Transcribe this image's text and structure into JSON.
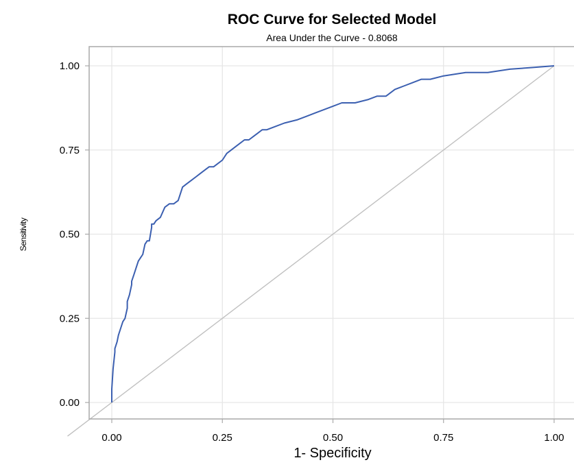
{
  "chart_data": {
    "type": "line",
    "title": "ROC Curve for Selected Model",
    "subtitle": "Area Under the Curve - 0.8068",
    "xlabel": "1- Specificity",
    "ylabel": "Sensitivity",
    "xlim": [
      -0.1,
      1.0
    ],
    "ylim": [
      -0.05,
      1.06
    ],
    "xticks": [
      "0.00",
      "0.25",
      "0.50",
      "0.75",
      "1.00"
    ],
    "xtick_values": [
      0,
      0.25,
      0.5,
      0.75,
      1.0
    ],
    "yticks": [
      "0.00",
      "0.25",
      "0.50",
      "0.75",
      "1.00"
    ],
    "ytick_values": [
      0,
      0.25,
      0.5,
      0.75,
      1.0
    ],
    "grid": true,
    "colors": {
      "roc": "#3b5fb0",
      "diagonal": "#c0c0c0",
      "grid": "#e6e6e6",
      "frame": "#a9a9a9"
    },
    "series": [
      {
        "x": [
          0,
          0.0,
          0.003,
          0.007,
          0.007,
          0.012,
          0.015,
          0.02,
          0.025,
          0.03,
          0.035,
          0.035,
          0.04,
          0.045,
          0.045,
          0.05,
          0.055,
          0.06,
          0.065,
          0.07,
          0.075,
          0.08,
          0.085,
          0.09,
          0.09,
          0.095,
          0.1,
          0.11,
          0.12,
          0.13,
          0.14,
          0.15,
          0.16,
          0.17,
          0.18,
          0.19,
          0.2,
          0.21,
          0.22,
          0.23,
          0.24,
          0.25,
          0.26,
          0.27,
          0.28,
          0.29,
          0.3,
          0.31,
          0.32,
          0.33,
          0.34,
          0.35,
          0.37,
          0.39,
          0.42,
          0.44,
          0.46,
          0.48,
          0.5,
          0.52,
          0.55,
          0.58,
          0.6,
          0.62,
          0.64,
          0.66,
          0.68,
          0.7,
          0.72,
          0.75,
          0.8,
          0.85,
          0.9,
          0.95,
          1.0
        ],
        "y": [
          0,
          0.04,
          0.1,
          0.15,
          0.16,
          0.18,
          0.2,
          0.22,
          0.24,
          0.25,
          0.28,
          0.3,
          0.32,
          0.35,
          0.36,
          0.38,
          0.4,
          0.42,
          0.43,
          0.44,
          0.47,
          0.48,
          0.48,
          0.52,
          0.53,
          0.53,
          0.54,
          0.55,
          0.58,
          0.59,
          0.59,
          0.6,
          0.64,
          0.65,
          0.66,
          0.67,
          0.68,
          0.69,
          0.7,
          0.7,
          0.71,
          0.72,
          0.74,
          0.75,
          0.76,
          0.77,
          0.78,
          0.78,
          0.79,
          0.8,
          0.81,
          0.81,
          0.82,
          0.83,
          0.84,
          0.85,
          0.86,
          0.87,
          0.88,
          0.89,
          0.89,
          0.9,
          0.91,
          0.91,
          0.93,
          0.94,
          0.95,
          0.96,
          0.96,
          0.97,
          0.98,
          0.98,
          0.99,
          0.995,
          1.0
        ]
      },
      {
        "x": [
          -0.1,
          1.0
        ],
        "y": [
          -0.1,
          1.0
        ]
      }
    ]
  }
}
